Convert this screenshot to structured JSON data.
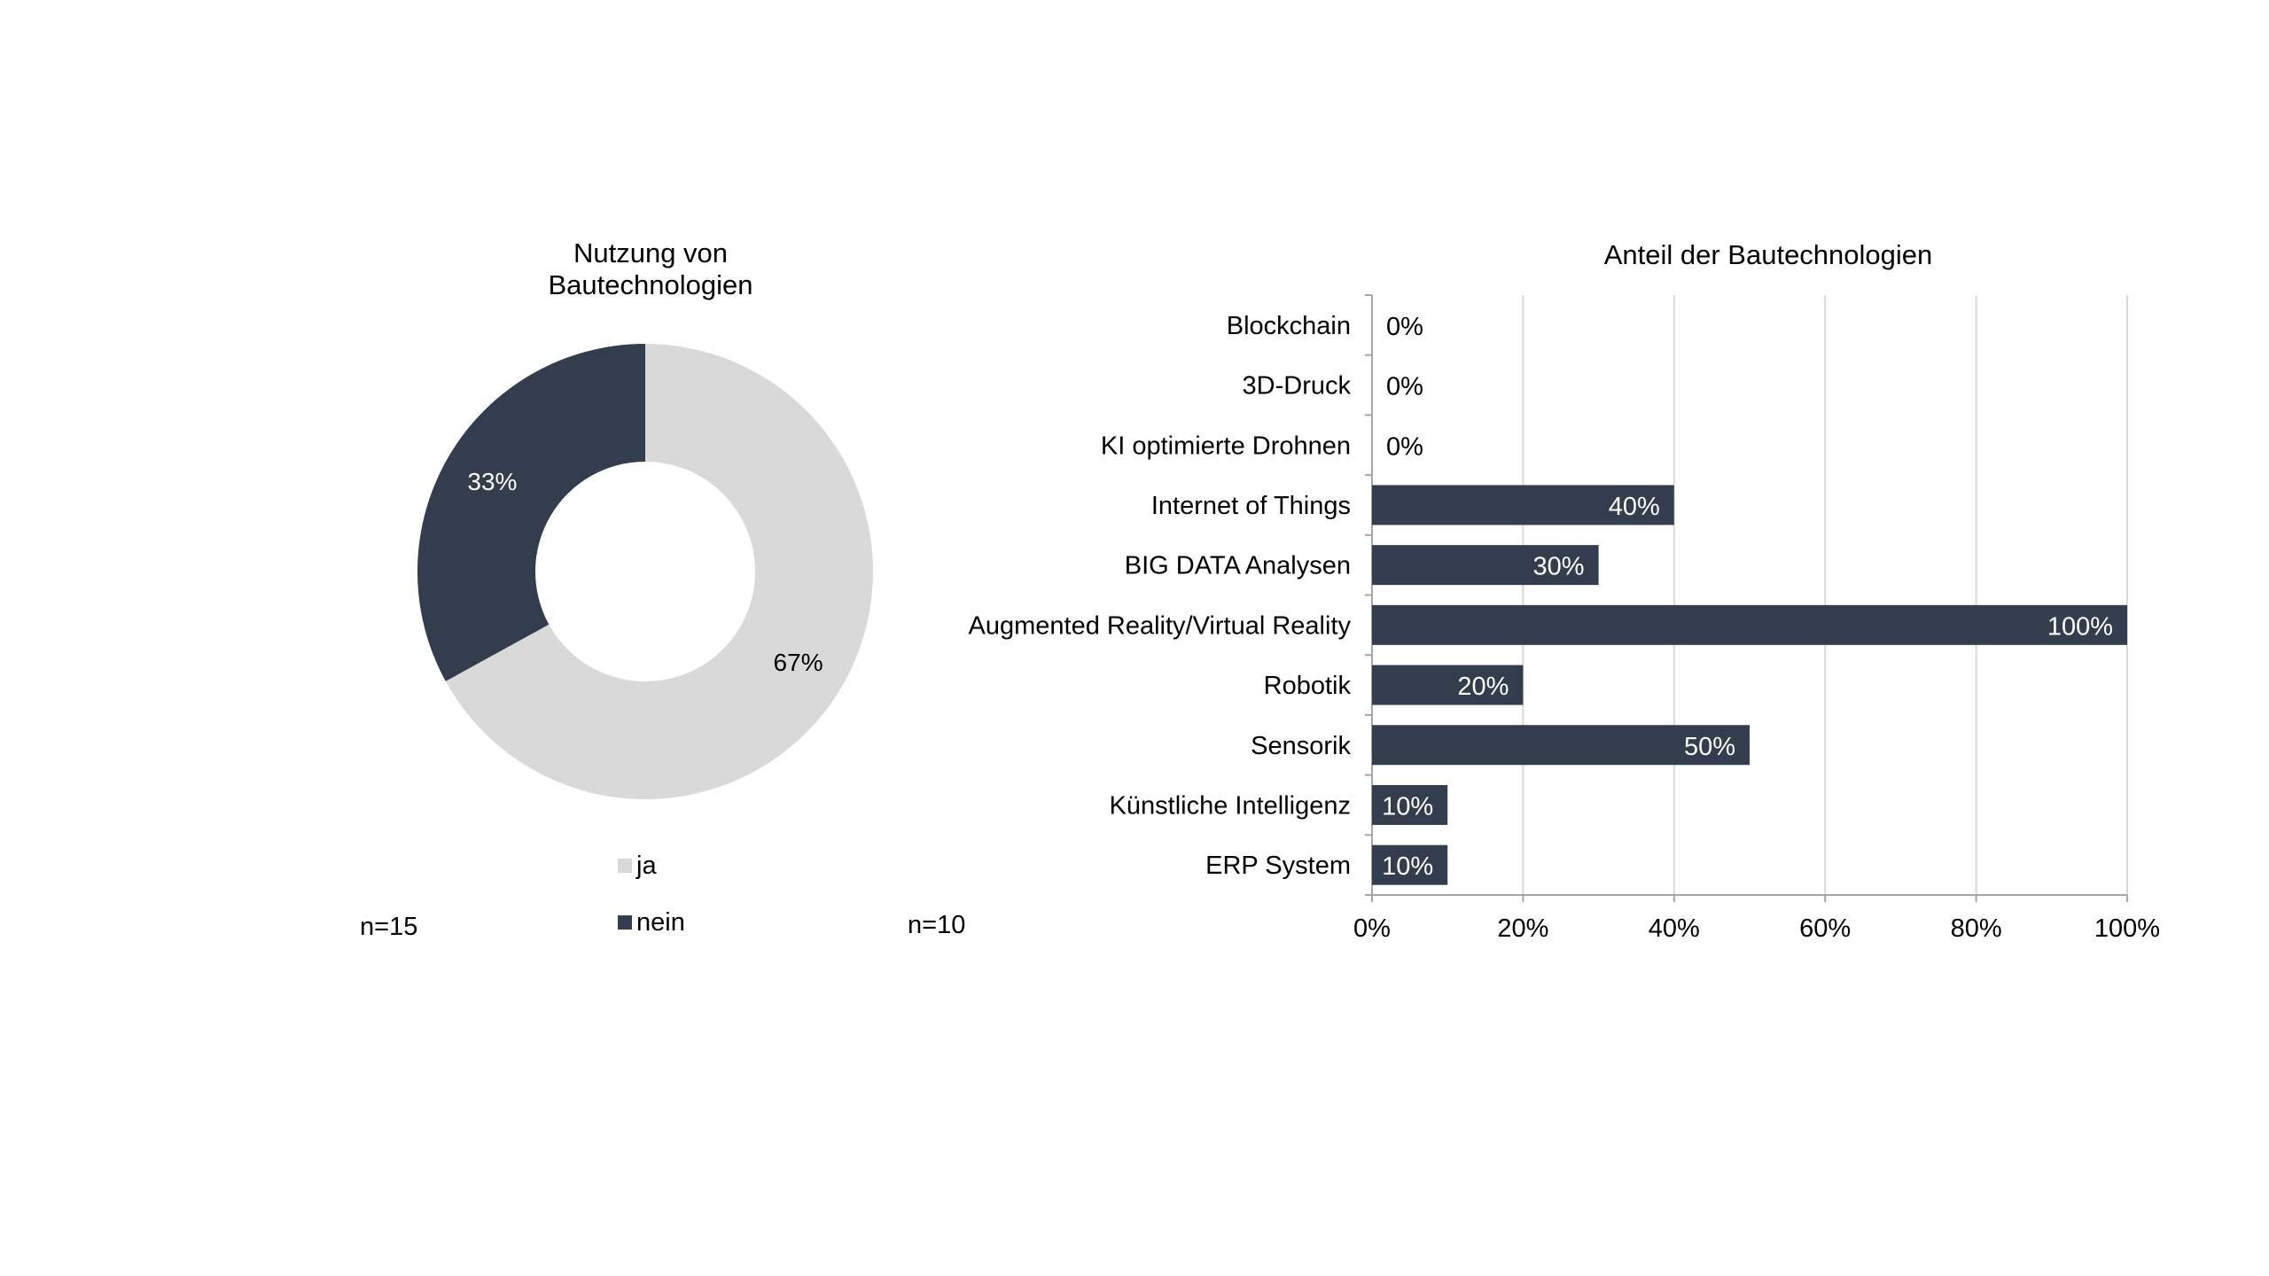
{
  "colors": {
    "dark": "#333d4e",
    "light": "#d9d9d9",
    "grid": "#d9d9d9",
    "axis": "#a6a6a6"
  },
  "notes": {
    "left_n": "n=15",
    "right_n": "n=10"
  },
  "chart_data": [
    {
      "type": "pie",
      "variant": "donut",
      "title_lines": [
        "Nutzung von",
        "Bautechnologien"
      ],
      "slices": [
        {
          "label": "ja",
          "value": 67,
          "value_label": "67%",
          "color": "#d9d9d9"
        },
        {
          "label": "nein",
          "value": 33,
          "value_label": "33%",
          "color": "#333d4e"
        }
      ],
      "legend": {
        "position": "bottom",
        "entries": [
          "ja",
          "nein"
        ]
      }
    },
    {
      "type": "bar",
      "orientation": "horizontal",
      "title": "Anteil der Bautechnologien",
      "categories": [
        "Blockchain",
        "3D-Druck",
        "KI optimierte Drohnen",
        "Internet of Things",
        "BIG DATA Analysen",
        "Augmented Reality/Virtual Reality",
        "Robotik",
        "Sensorik",
        "Künstliche Intelligenz",
        "ERP System"
      ],
      "values": [
        0,
        0,
        0,
        40,
        30,
        100,
        20,
        50,
        10,
        10
      ],
      "value_labels": [
        "0%",
        "0%",
        "0%",
        "40%",
        "30%",
        "100%",
        "20%",
        "50%",
        "10%",
        "10%"
      ],
      "xlim": [
        0,
        100
      ],
      "xticks": [
        0,
        20,
        40,
        60,
        80,
        100
      ],
      "xtick_labels": [
        "0%",
        "20%",
        "40%",
        "60%",
        "80%",
        "100%"
      ],
      "grid": "vertical",
      "bar_color": "#333d4e"
    }
  ]
}
